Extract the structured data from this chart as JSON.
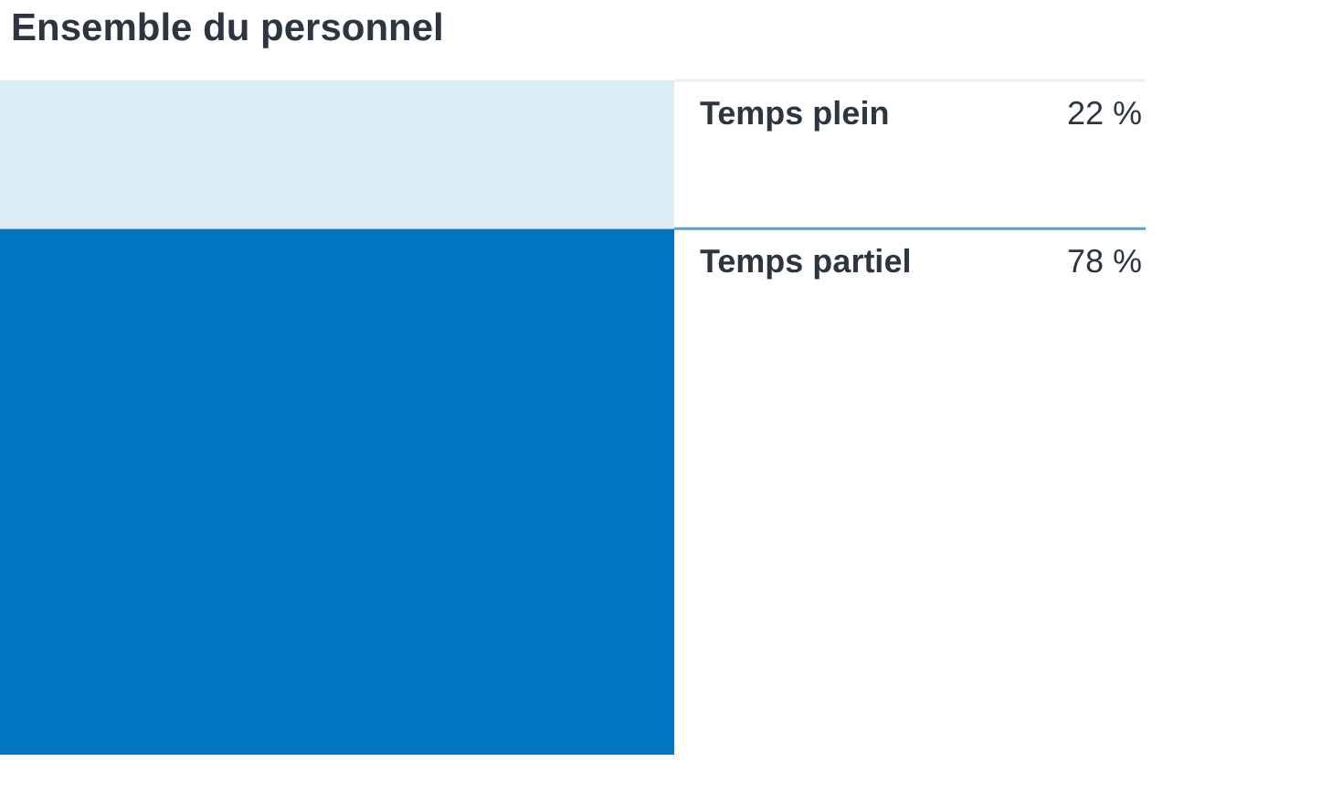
{
  "chart_data": {
    "type": "bar",
    "title": "Ensemble du personnel",
    "stacked": true,
    "categories": [
      null
    ],
    "series": [
      {
        "name": "Temps partiel",
        "color": "#0077c0",
        "values": [
          78
        ],
        "value_labels": [
          "78 %"
        ]
      },
      {
        "name": "Temps plein",
        "color": "#dcedf5",
        "values": [
          22
        ],
        "value_labels": [
          "22 %"
        ]
      }
    ]
  }
}
